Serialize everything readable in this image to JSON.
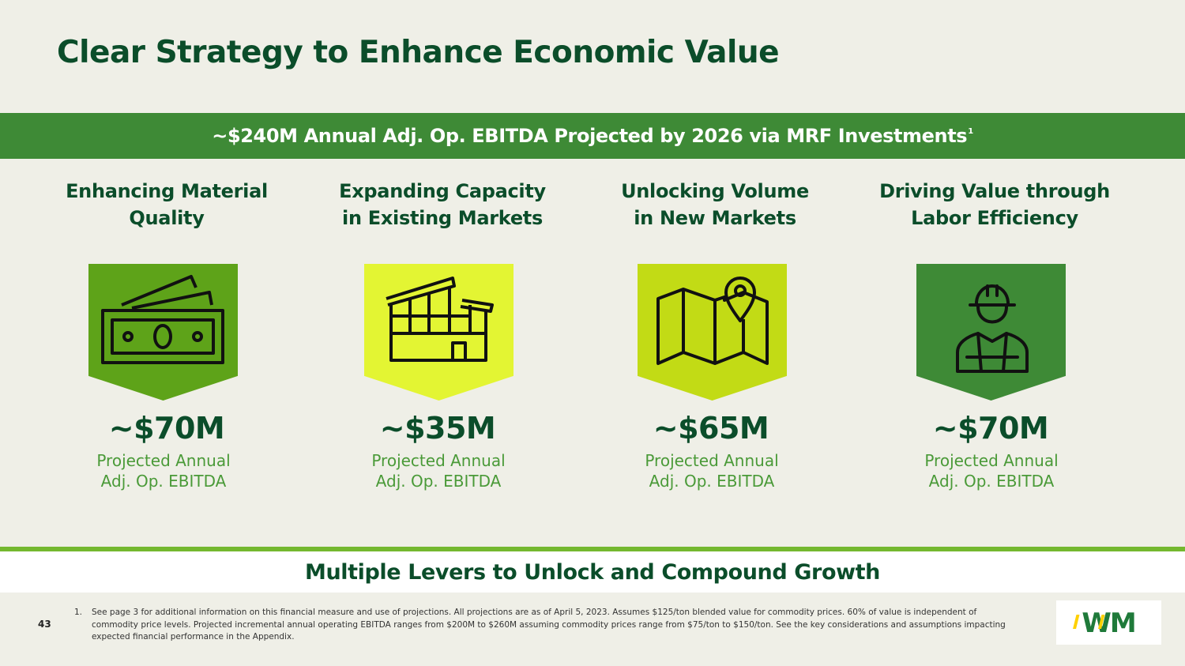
{
  "header": {
    "title": "Clear Strategy to Enhance Economic Value"
  },
  "banner": {
    "text": "~$240M Annual Adj. Op. EBITDA Projected by 2026 via MRF Investments",
    "footnote_ref": "1"
  },
  "levers": [
    {
      "heading_line1": "Enhancing Material",
      "heading_line2": "Quality",
      "icon": "cash-icon",
      "color": "#5ea319",
      "value": "~$70M",
      "desc_line1": "Projected Annual",
      "desc_line2": "Adj. Op. EBITDA"
    },
    {
      "heading_line1": "Expanding Capacity",
      "heading_line2": "in Existing Markets",
      "icon": "building-icon",
      "color": "#e3f533",
      "value": "~$35M",
      "desc_line1": "Projected Annual",
      "desc_line2": "Adj. Op. EBITDA"
    },
    {
      "heading_line1": "Unlocking Volume",
      "heading_line2": "in New Markets",
      "icon": "map-pin-icon",
      "color": "#c2db15",
      "value": "~$65M",
      "desc_line1": "Projected Annual",
      "desc_line2": "Adj. Op. EBITDA"
    },
    {
      "heading_line1": "Driving Value through",
      "heading_line2": "Labor Efficiency",
      "icon": "worker-icon",
      "color": "#3e8a36",
      "value": "~$70M",
      "desc_line1": "Projected Annual",
      "desc_line2": "Adj. Op. EBITDA"
    }
  ],
  "bottom_band": {
    "text": "Multiple Levers to Unlock and Compound Growth"
  },
  "footer": {
    "page_number": "43",
    "footnote_marker": "1.",
    "footnote_text": "See page 3 for additional information on this financial measure and use of projections. All projections are as of April 5, 2023. Assumes $125/ton blended value for commodity prices. 60% of value is independent of commodity price levels. Projected incremental annual operating EBITDA ranges from $200M to $260M assuming commodity prices range from $75/ton to $150/ton. See the key considerations and assumptions impacting expected financial performance in the Appendix.",
    "logo_text": "WM"
  },
  "colors": {
    "dark_green": "#0b4d2a",
    "banner_green": "#3e8a36",
    "light_green_text": "#4a9a38",
    "rule_green": "#74b82f",
    "background": "#efefe7"
  }
}
